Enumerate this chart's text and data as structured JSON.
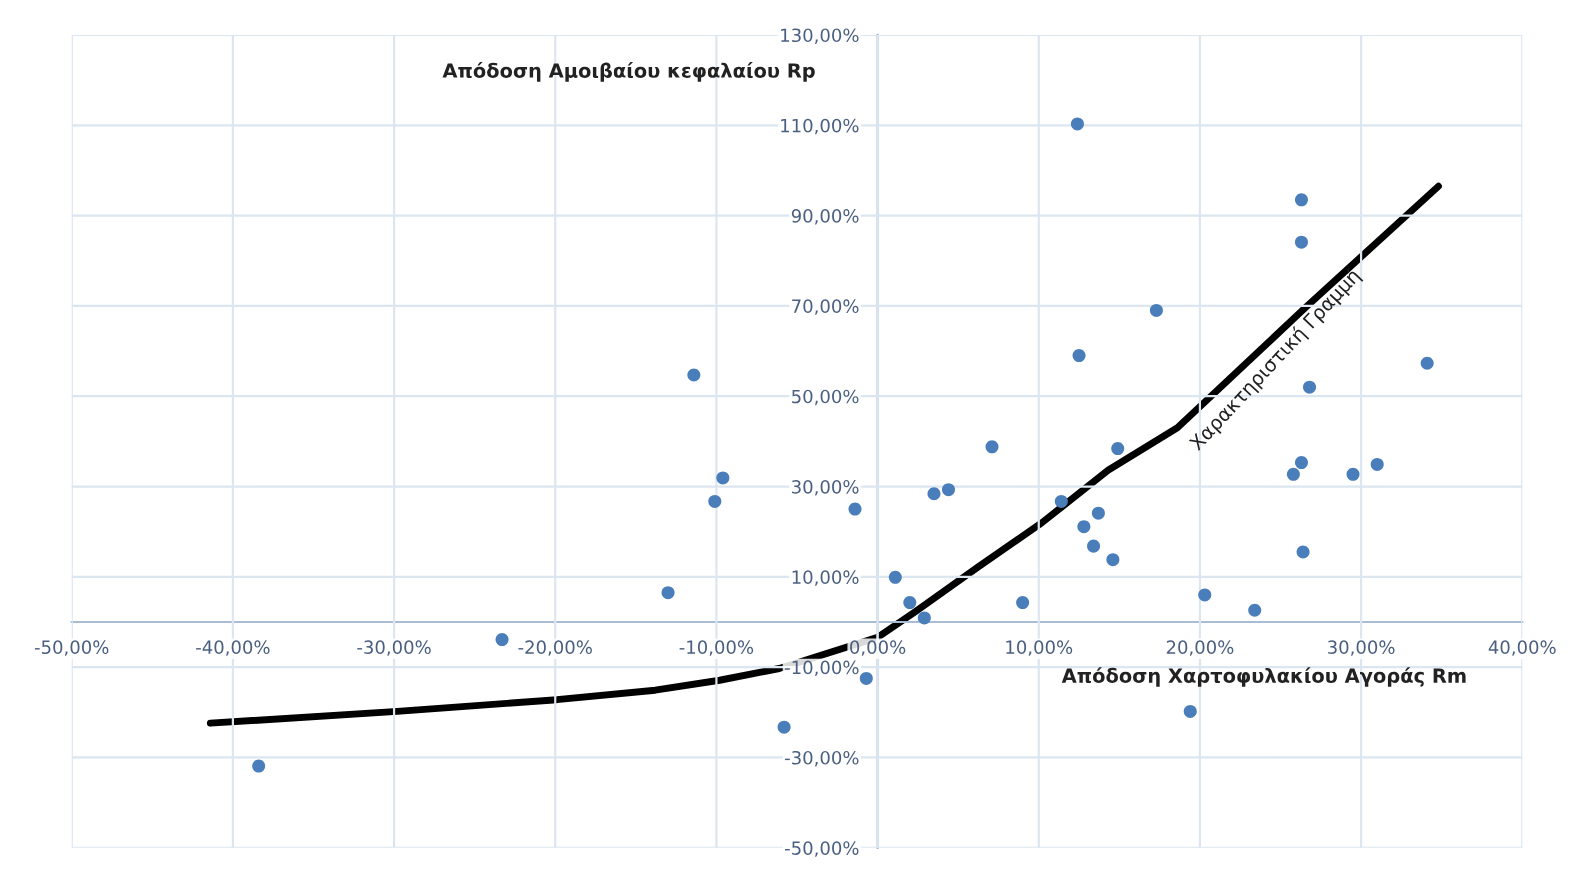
{
  "chart_data": {
    "type": "scatter",
    "xlabel": "Απόδοση Χαρτοφυλακίου Αγοράς Rm",
    "ylabel": "Απόδοση Αμοιβαίου κεφαλαίου Rp",
    "xlim": [
      -50,
      40
    ],
    "ylim": [
      -50,
      130
    ],
    "xticks": [
      {
        "value": -50,
        "label": "-50,00%"
      },
      {
        "value": -40,
        "label": "-40,00%"
      },
      {
        "value": -30,
        "label": "-30,00%"
      },
      {
        "value": -20,
        "label": "-20,00%"
      },
      {
        "value": -10,
        "label": "-10,00%"
      },
      {
        "value": 0,
        "label": "0,00%"
      },
      {
        "value": 10,
        "label": "10,00%"
      },
      {
        "value": 20,
        "label": "20,00%"
      },
      {
        "value": 30,
        "label": "30,00%"
      },
      {
        "value": 40,
        "label": "40,00%"
      }
    ],
    "yticks": [
      {
        "value": -50,
        "label": "-50,00%"
      },
      {
        "value": -30,
        "label": "-30,00%"
      },
      {
        "value": -10,
        "label": "-10,00%"
      },
      {
        "value": 10,
        "label": "10,00%"
      },
      {
        "value": 30,
        "label": "30,00%"
      },
      {
        "value": 50,
        "label": "50,00%"
      },
      {
        "value": 70,
        "label": "70,00%"
      },
      {
        "value": 90,
        "label": "90,00%"
      },
      {
        "value": 110,
        "label": "110,00%"
      },
      {
        "value": 130,
        "label": "130,00%"
      }
    ],
    "grid": true,
    "series": [
      {
        "marker": "circle",
        "color": "#4a7ebb",
        "x": [
          -11.4,
          12.4,
          26.3,
          26.3,
          17.3,
          12.5,
          34.1,
          26.8,
          -9.6,
          -10.1,
          -13.0,
          -23.3,
          -38.4,
          -5.8,
          14.9,
          7.1,
          26.3,
          25.8,
          29.5,
          31.0,
          -1.4,
          3.5,
          4.4,
          11.4,
          13.7,
          12.8,
          13.4,
          14.6,
          26.4,
          1.1,
          2.0,
          9.0,
          20.3,
          23.4,
          2.9,
          -0.7,
          19.4
        ],
        "values": [
          54.7,
          110.3,
          93.5,
          84.1,
          69.0,
          59.0,
          57.3,
          52.0,
          31.9,
          26.7,
          6.5,
          -3.9,
          -31.9,
          -23.3,
          38.4,
          38.8,
          35.3,
          32.7,
          32.7,
          34.9,
          25.0,
          28.4,
          29.3,
          26.7,
          24.1,
          21.1,
          16.8,
          13.8,
          15.5,
          9.9,
          4.3,
          4.3,
          6.0,
          2.6,
          0.9,
          -12.5,
          -19.8
        ]
      },
      {
        "type": "line",
        "color": "#000000",
        "x": [
          -41.4,
          -29.8,
          -19.9,
          -13.8,
          -9.8,
          -6.1,
          0,
          2.3,
          6.2,
          10.2,
          14.3,
          18.6,
          26.6,
          34.8
        ],
        "values": [
          -22.4,
          -19.8,
          -17.2,
          -15.1,
          -12.9,
          -10.3,
          -3.4,
          2.2,
          12.1,
          22.0,
          33.6,
          43.0,
          69.8,
          96.5
        ]
      }
    ],
    "annotations": [
      "Χαρακτηριστική Γραμμή"
    ]
  }
}
